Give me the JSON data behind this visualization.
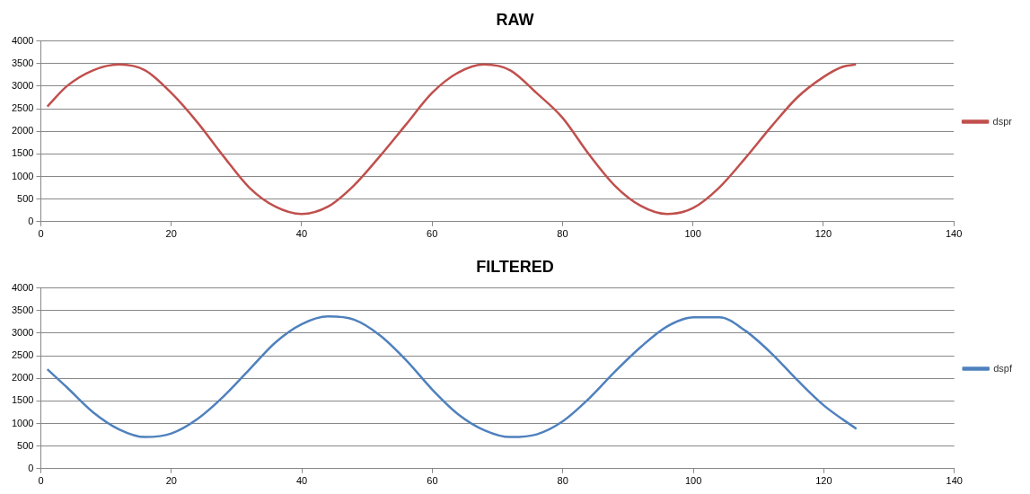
{
  "chart_data": [
    {
      "type": "line",
      "title": "RAW",
      "xlim": [
        0,
        140
      ],
      "xticks": [
        0,
        20,
        40,
        60,
        80,
        100,
        120,
        140
      ],
      "ylim": [
        0,
        4000
      ],
      "yticks": [
        0,
        500,
        1000,
        1500,
        2000,
        2500,
        3000,
        3500,
        4000
      ],
      "grid": "y",
      "legend": "right",
      "marker": "none",
      "series": [
        {
          "name": "dspr",
          "color": "#c0504d",
          "x": [
            1,
            4,
            8,
            12,
            16,
            20,
            24,
            28,
            32,
            36,
            40,
            44,
            48,
            52,
            56,
            60,
            64,
            68,
            72,
            76,
            80,
            84,
            88,
            92,
            96,
            100,
            104,
            108,
            112,
            116,
            120,
            123,
            125
          ],
          "values": [
            2550,
            3000,
            3350,
            3480,
            3350,
            2850,
            2200,
            1450,
            750,
            330,
            170,
            330,
            800,
            1450,
            2150,
            2850,
            3300,
            3480,
            3350,
            2850,
            2300,
            1500,
            800,
            350,
            170,
            300,
            750,
            1400,
            2100,
            2750,
            3200,
            3430,
            3480
          ]
        }
      ]
    },
    {
      "type": "line",
      "title": "FILTERED",
      "xlim": [
        0,
        140
      ],
      "xticks": [
        0,
        20,
        40,
        60,
        80,
        100,
        120,
        140
      ],
      "ylim": [
        0,
        4000
      ],
      "yticks": [
        0,
        500,
        1000,
        1500,
        2000,
        2500,
        3000,
        3500,
        4000
      ],
      "grid": "y",
      "legend": "right",
      "marker": "none",
      "series": [
        {
          "name": "dspf",
          "color": "#4f81bd",
          "x": [
            1,
            4,
            8,
            12,
            16,
            20,
            24,
            28,
            32,
            36,
            40,
            44,
            48,
            52,
            56,
            60,
            64,
            68,
            72,
            76,
            80,
            84,
            88,
            92,
            96,
            100,
            104,
            108,
            112,
            116,
            120,
            125
          ],
          "values": [
            2200,
            1800,
            1250,
            870,
            700,
            780,
            1100,
            1600,
            2200,
            2800,
            3200,
            3370,
            3300,
            2950,
            2400,
            1750,
            1200,
            850,
            700,
            760,
            1050,
            1550,
            2150,
            2700,
            3150,
            3350,
            3350,
            3050,
            2550,
            1950,
            1400,
            880
          ]
        }
      ]
    }
  ]
}
